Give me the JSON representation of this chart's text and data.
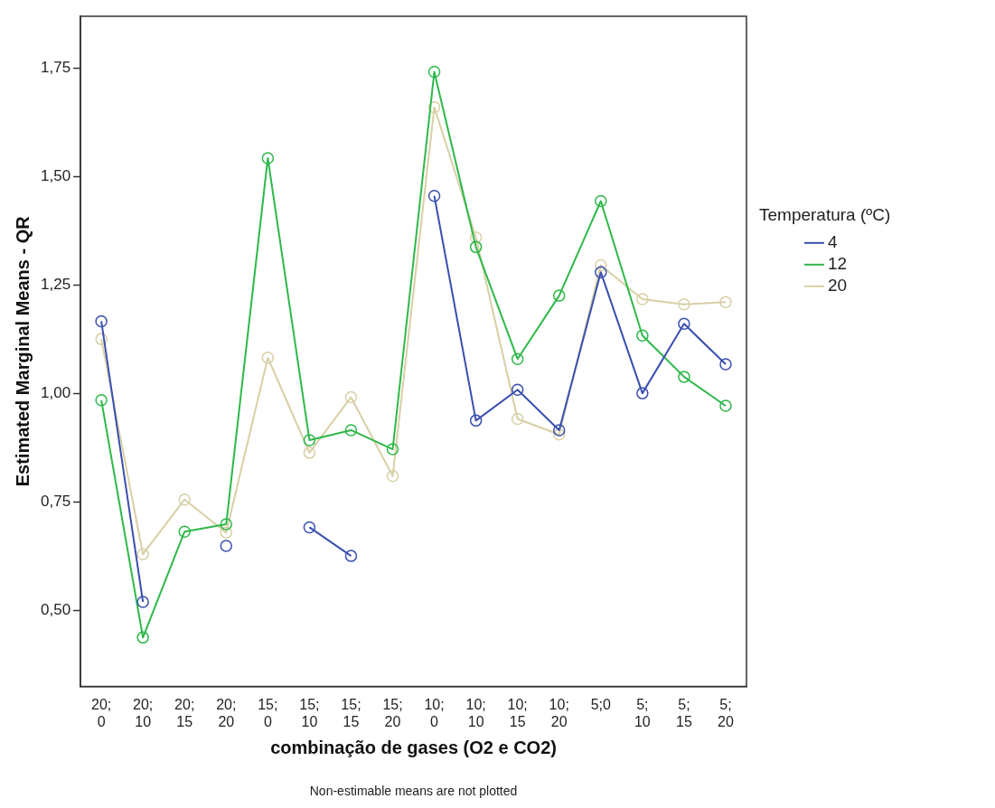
{
  "chart_data": {
    "type": "line",
    "xlabel": "combinação de gases (O2 e CO2)",
    "ylabel": "Estimated Marginal Means - QR",
    "legend_title": "Temperatura (ºC)",
    "categories": [
      "20; 0",
      "20; 10",
      "20; 15",
      "20; 20",
      "15; 0",
      "15; 10",
      "15; 15",
      "15; 20",
      "10; 0",
      "10; 10",
      "10; 15",
      "10; 20",
      "5;0",
      "5; 10",
      "5; 15",
      "5; 20"
    ],
    "series": [
      {
        "name": "4",
        "color": "#3a4fb0",
        "values": [
          1.167,
          0.52,
          null,
          0.649,
          null,
          0.692,
          0.626,
          null,
          1.456,
          0.938,
          1.009,
          0.916,
          1.28,
          1.001,
          1.161,
          1.068
        ]
      },
      {
        "name": "12",
        "color": "#2eb84a",
        "values": [
          0.985,
          0.438,
          0.682,
          0.699,
          1.543,
          0.893,
          0.916,
          0.872,
          1.742,
          1.338,
          1.08,
          1.226,
          1.444,
          1.134,
          1.039,
          0.972
        ]
      },
      {
        "name": "20",
        "color": "#d8cfa6",
        "values": [
          1.126,
          0.63,
          0.756,
          0.68,
          1.083,
          0.864,
          0.992,
          0.81,
          1.66,
          1.36,
          0.942,
          0.906,
          1.296,
          1.218,
          1.206,
          1.211
        ]
      }
    ],
    "ylim": [
      0.325,
      1.87
    ],
    "yticks": [
      {
        "value": 0.5,
        "label": "0,50"
      },
      {
        "value": 0.75,
        "label": "0,75"
      },
      {
        "value": 1.0,
        "label": "1,00"
      },
      {
        "value": 1.25,
        "label": "1,25"
      },
      {
        "value": 1.5,
        "label": "1,50"
      },
      {
        "value": 1.75,
        "label": "1,75"
      }
    ],
    "grid": false,
    "legend": "right",
    "marker": "circle",
    "line_style": "solid",
    "annotations": [
      "Non-estimable means are not plotted"
    ]
  }
}
